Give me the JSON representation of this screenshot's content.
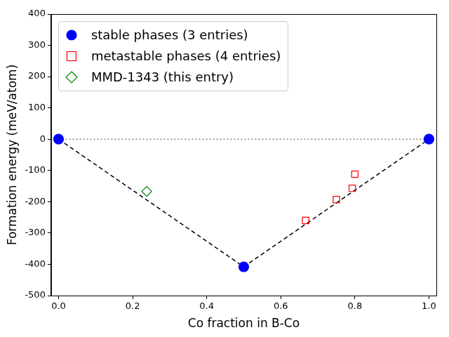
{
  "chart_data": {
    "type": "scatter",
    "x_label": "Co fraction in B-Co",
    "y_label": "Formation energy (meV/atom)",
    "xlim": [
      -0.02,
      1.02
    ],
    "xticks": [
      {
        "value": 0,
        "label": "0.0"
      },
      0.2,
      0.4,
      0.6,
      0.8,
      {
        "value": 1,
        "label": "1.0"
      }
    ],
    "ylim": [
      -500,
      400
    ],
    "yticks": [
      -500,
      -400,
      -300,
      -200,
      -100,
      0,
      100,
      200,
      300,
      400
    ],
    "grid": false,
    "legend": "upper left",
    "series": [
      {
        "name": "stable phases (3 entries)",
        "color": "#0000ff",
        "marker": "circle",
        "line_style": "dashed",
        "x": [
          0,
          0.5,
          1
        ],
        "values": [
          0,
          -408,
          0
        ]
      },
      {
        "name": "metastable phases (4 entries)",
        "color": "#ff0000",
        "marker": "open_square",
        "x": [
          0.667,
          0.75,
          0.793,
          0.8
        ],
        "values": [
          -260,
          -193,
          -157,
          -112
        ]
      },
      {
        "name": "MMD-1343 (this entry)",
        "color": "#008000",
        "marker": "open_diamond",
        "x": [
          0.238
        ],
        "values": [
          -167
        ]
      }
    ]
  }
}
